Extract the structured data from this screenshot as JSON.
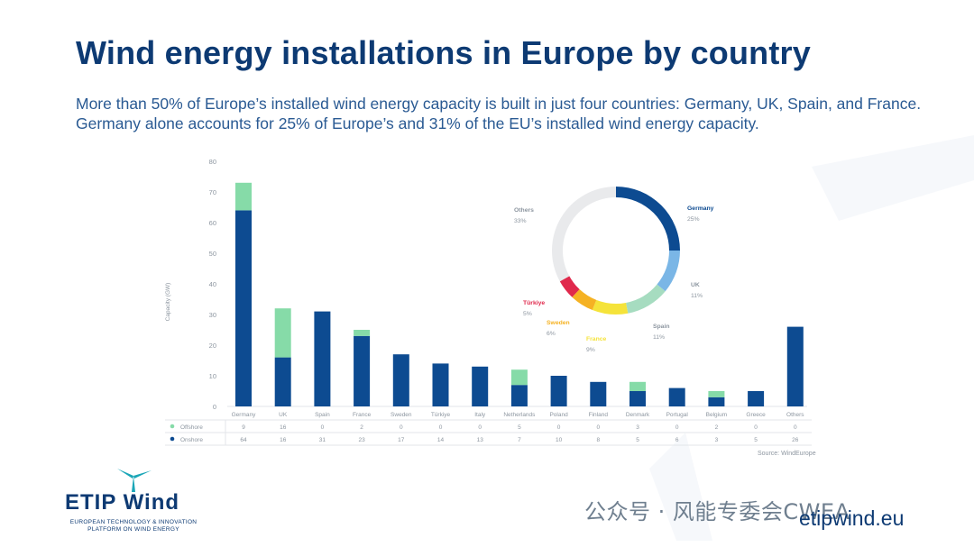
{
  "slide": {
    "title": "Wind energy installations in Europe by country",
    "subtitle": "More than 50% of Europe’s installed wind energy capacity is built in just four countries: Germany, UK, Spain, and France. Germany alone accounts for 25% of Europe’s and 31% of the EU’s installed wind energy capacity.",
    "source": "Source: WindEurope",
    "logo": {
      "name": "ETIP Wind",
      "tagline_1": "EUROPEAN TECHNOLOGY & INNOVATION",
      "tagline_2": "PLATFORM ON WIND ENERGY"
    },
    "url": "etipwind.eu",
    "watermark": "公众号 · 风能专委会CWEA"
  },
  "colors": {
    "offshore": "#86dba8",
    "onshore": "#0d4b91",
    "title": "#0d3a73",
    "subtitle": "#2a5a93"
  },
  "chart_data": [
    {
      "type": "bar",
      "stacked": true,
      "ylabel": "Capacity (GW)",
      "ylim": [
        0,
        80
      ],
      "yticks": [
        0,
        10,
        20,
        30,
        40,
        50,
        60,
        70,
        80
      ],
      "grid": false,
      "categories": [
        "Germany",
        "UK",
        "Spain",
        "France",
        "Sweden",
        "Türkiye",
        "Italy",
        "Netherlands",
        "Poland",
        "Finland",
        "Denmark",
        "Portugal",
        "Belgium",
        "Greece",
        "Others"
      ],
      "series": [
        {
          "name": "Onshore",
          "values": [
            64,
            16,
            31,
            23,
            17,
            14,
            13,
            7,
            10,
            8,
            5,
            6,
            3,
            5,
            26
          ]
        },
        {
          "name": "Offshore",
          "values": [
            9,
            16,
            0,
            2,
            0,
            0,
            0,
            5,
            0,
            0,
            3,
            0,
            2,
            0,
            0
          ]
        }
      ],
      "table_rows": [
        {
          "label": "Offshore",
          "values": [
            "9",
            "16",
            "0",
            "2",
            "0",
            "0",
            "0",
            "5",
            "0",
            "0",
            "3",
            "0",
            "2",
            "0",
            "0"
          ]
        },
        {
          "label": "Onshore",
          "values": [
            "64",
            "16",
            "31",
            "23",
            "17",
            "14",
            "13",
            "7",
            "10",
            "8",
            "5",
            "6",
            "3",
            "5",
            "26"
          ]
        }
      ]
    },
    {
      "type": "pie",
      "donut": true,
      "slices": [
        {
          "label": "Germany",
          "value": 25,
          "text": "25%",
          "color": "#0d4b91"
        },
        {
          "label": "UK",
          "value": 11,
          "text": "11%",
          "color": "#7ab6e6"
        },
        {
          "label": "Spain",
          "value": 11,
          "text": "11%",
          "color": "#a6dcc0"
        },
        {
          "label": "France",
          "value": 9,
          "text": "9%",
          "color": "#f5e33a"
        },
        {
          "label": "Sweden",
          "value": 6,
          "text": "6%",
          "color": "#f5b223"
        },
        {
          "label": "Türkiye",
          "value": 5,
          "text": "5%",
          "color": "#e0294c"
        },
        {
          "label": "Others",
          "value": 33,
          "text": "33%",
          "color": "#e9eaec"
        }
      ]
    }
  ]
}
